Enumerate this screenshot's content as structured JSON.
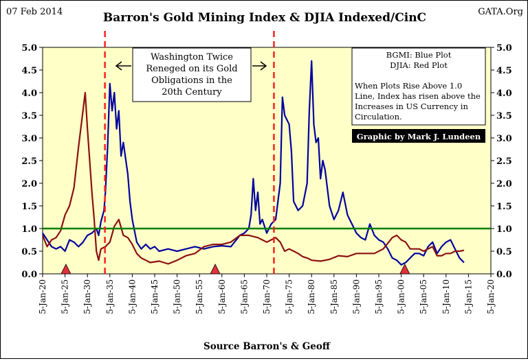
{
  "header": {
    "date": "07 Feb 2014",
    "title": "Barron's Gold Mining Index & DJIA Indexed/CinC",
    "source_tag": "GATA.Org"
  },
  "footer": {
    "source": "Source Barron's & Geoff"
  },
  "annotations": {
    "washington": [
      "Washington Twice",
      "Reneged on its Gold",
      "Obligations in the",
      "20th Century"
    ],
    "legend": [
      "BGMI: Blue Plot",
      "DJIA: Red Plot"
    ],
    "note": [
      "When Plots Rise Above 1.0",
      "Line, Index has risen above the",
      "Increases in US Currency in",
      "Circulation."
    ],
    "credit": "Graphic by Mark J. Lundeen"
  },
  "colors": {
    "plot_bg": "#ffffc8",
    "bgmi": "#00009e",
    "djia": "#8b1010",
    "reference": "#008000",
    "events": "#ff2020",
    "markers": "#e0303a"
  },
  "chart_data": {
    "type": "line",
    "title": "Barron's Gold Mining Index & DJIA Indexed/CinC",
    "xlabel": "Source Barron's & Geoff",
    "ylabel": "",
    "xlim": [
      1920,
      2020
    ],
    "ylim": [
      0,
      5
    ],
    "yticks": [
      "0.0",
      "0.5",
      "1.0",
      "1.5",
      "2.0",
      "2.5",
      "3.0",
      "3.5",
      "4.0",
      "4.5",
      "5.0"
    ],
    "xticks": [
      "5-Jan-20",
      "5-Jan-25",
      "5-Jan-30",
      "5-Jan-35",
      "5-Jan-40",
      "5-Jan-45",
      "5-Jan-50",
      "5-Jan-55",
      "5-Jan-60",
      "5-Jan-65",
      "5-Jan-70",
      "5-Jan-75",
      "5-Jan-80",
      "5-Jan-85",
      "5-Jan-90",
      "5-Jan-95",
      "5-Jan-00",
      "5-Jan-05",
      "5-Jan-10",
      "5-Jan-15",
      "5-Jan-20"
    ],
    "reference_line": 1.0,
    "event_lines": [
      1933.9,
      1971.6
    ],
    "markers": [
      1925.2,
      1958.5,
      2000.8
    ],
    "grid": false,
    "series": [
      {
        "name": "BGMI",
        "values": [
          [
            1920,
            0.9
          ],
          [
            1921,
            0.75
          ],
          [
            1922,
            0.6
          ],
          [
            1923,
            0.55
          ],
          [
            1924,
            0.6
          ],
          [
            1925,
            0.5
          ],
          [
            1926,
            0.75
          ],
          [
            1927,
            0.7
          ],
          [
            1928,
            0.6
          ],
          [
            1929,
            0.7
          ],
          [
            1930,
            0.85
          ],
          [
            1931,
            0.9
          ],
          [
            1932,
            1.0
          ],
          [
            1932.5,
            0.85
          ],
          [
            1933,
            1.15
          ],
          [
            1933.7,
            1.4
          ],
          [
            1934,
            1.8
          ],
          [
            1934.5,
            2.8
          ],
          [
            1935,
            4.2
          ],
          [
            1935.5,
            3.6
          ],
          [
            1936,
            4.0
          ],
          [
            1936.5,
            3.2
          ],
          [
            1937,
            3.6
          ],
          [
            1937.5,
            2.6
          ],
          [
            1938,
            2.9
          ],
          [
            1939,
            2.2
          ],
          [
            1939.5,
            1.6
          ],
          [
            1940,
            1.2
          ],
          [
            1941,
            0.7
          ],
          [
            1942,
            0.55
          ],
          [
            1943,
            0.65
          ],
          [
            1944,
            0.55
          ],
          [
            1945,
            0.6
          ],
          [
            1946,
            0.5
          ],
          [
            1948,
            0.55
          ],
          [
            1950,
            0.5
          ],
          [
            1952,
            0.55
          ],
          [
            1954,
            0.6
          ],
          [
            1956,
            0.55
          ],
          [
            1958,
            0.6
          ],
          [
            1960,
            0.62
          ],
          [
            1962,
            0.6
          ],
          [
            1964,
            0.85
          ],
          [
            1965,
            0.9
          ],
          [
            1966,
            1.0
          ],
          [
            1966.5,
            1.3
          ],
          [
            1967,
            2.1
          ],
          [
            1967.5,
            1.4
          ],
          [
            1968,
            1.8
          ],
          [
            1968.5,
            1.1
          ],
          [
            1969,
            1.2
          ],
          [
            1970,
            0.9
          ],
          [
            1971,
            1.1
          ],
          [
            1972,
            1.2
          ],
          [
            1973,
            2.0
          ],
          [
            1973.5,
            3.9
          ],
          [
            1974,
            3.5
          ],
          [
            1975,
            3.3
          ],
          [
            1975.5,
            2.7
          ],
          [
            1976,
            1.6
          ],
          [
            1977,
            1.4
          ],
          [
            1978,
            1.5
          ],
          [
            1979,
            2.0
          ],
          [
            1979.5,
            3.6
          ],
          [
            1980,
            4.7
          ],
          [
            1980.5,
            3.3
          ],
          [
            1981,
            2.9
          ],
          [
            1981.5,
            3.0
          ],
          [
            1982,
            2.1
          ],
          [
            1982.5,
            2.5
          ],
          [
            1983,
            2.3
          ],
          [
            1984,
            1.5
          ],
          [
            1985,
            1.2
          ],
          [
            1986,
            1.4
          ],
          [
            1987,
            1.8
          ],
          [
            1988,
            1.3
          ],
          [
            1989,
            1.1
          ],
          [
            1990,
            0.9
          ],
          [
            1991,
            0.8
          ],
          [
            1992,
            0.75
          ],
          [
            1993,
            1.1
          ],
          [
            1994,
            0.85
          ],
          [
            1995,
            0.75
          ],
          [
            1996,
            0.7
          ],
          [
            1997,
            0.55
          ],
          [
            1998,
            0.35
          ],
          [
            1999,
            0.3
          ],
          [
            2000,
            0.2
          ],
          [
            2001,
            0.25
          ],
          [
            2002,
            0.35
          ],
          [
            2003,
            0.45
          ],
          [
            2004,
            0.45
          ],
          [
            2005,
            0.4
          ],
          [
            2006,
            0.6
          ],
          [
            2007,
            0.7
          ],
          [
            2008,
            0.45
          ],
          [
            2009,
            0.6
          ],
          [
            2010,
            0.7
          ],
          [
            2011,
            0.75
          ],
          [
            2012,
            0.55
          ],
          [
            2013,
            0.35
          ],
          [
            2014,
            0.25
          ]
        ]
      },
      {
        "name": "DJIA",
        "values": [
          [
            1920,
            0.85
          ],
          [
            1921,
            0.6
          ],
          [
            1922,
            0.75
          ],
          [
            1923,
            0.8
          ],
          [
            1924,
            0.95
          ],
          [
            1925,
            1.3
          ],
          [
            1926,
            1.5
          ],
          [
            1927,
            1.9
          ],
          [
            1928,
            2.8
          ],
          [
            1929,
            3.6
          ],
          [
            1929.5,
            4.0
          ],
          [
            1930,
            3.2
          ],
          [
            1931,
            1.8
          ],
          [
            1931.5,
            1.2
          ],
          [
            1932,
            0.5
          ],
          [
            1932.5,
            0.3
          ],
          [
            1933,
            0.55
          ],
          [
            1934,
            0.6
          ],
          [
            1935,
            0.7
          ],
          [
            1936,
            1.05
          ],
          [
            1937,
            1.2
          ],
          [
            1938,
            0.85
          ],
          [
            1939,
            0.8
          ],
          [
            1940,
            0.65
          ],
          [
            1941,
            0.45
          ],
          [
            1942,
            0.35
          ],
          [
            1943,
            0.3
          ],
          [
            1944,
            0.25
          ],
          [
            1946,
            0.28
          ],
          [
            1948,
            0.22
          ],
          [
            1950,
            0.3
          ],
          [
            1952,
            0.4
          ],
          [
            1954,
            0.45
          ],
          [
            1956,
            0.6
          ],
          [
            1958,
            0.65
          ],
          [
            1960,
            0.65
          ],
          [
            1962,
            0.7
          ],
          [
            1964,
            0.85
          ],
          [
            1966,
            0.85
          ],
          [
            1968,
            0.8
          ],
          [
            1970,
            0.7
          ],
          [
            1971,
            0.75
          ],
          [
            1972,
            0.8
          ],
          [
            1973,
            0.7
          ],
          [
            1974,
            0.5
          ],
          [
            1975,
            0.55
          ],
          [
            1976,
            0.5
          ],
          [
            1977,
            0.45
          ],
          [
            1978,
            0.38
          ],
          [
            1979,
            0.35
          ],
          [
            1980,
            0.3
          ],
          [
            1982,
            0.28
          ],
          [
            1984,
            0.32
          ],
          [
            1986,
            0.4
          ],
          [
            1988,
            0.38
          ],
          [
            1990,
            0.45
          ],
          [
            1992,
            0.45
          ],
          [
            1994,
            0.45
          ],
          [
            1996,
            0.55
          ],
          [
            1998,
            0.8
          ],
          [
            1999,
            0.85
          ],
          [
            2000,
            0.75
          ],
          [
            2001,
            0.7
          ],
          [
            2002,
            0.55
          ],
          [
            2003,
            0.55
          ],
          [
            2004,
            0.55
          ],
          [
            2005,
            0.5
          ],
          [
            2006,
            0.55
          ],
          [
            2007,
            0.6
          ],
          [
            2008,
            0.4
          ],
          [
            2009,
            0.4
          ],
          [
            2010,
            0.45
          ],
          [
            2011,
            0.45
          ],
          [
            2012,
            0.5
          ],
          [
            2013,
            0.5
          ],
          [
            2014,
            0.52
          ]
        ]
      }
    ]
  }
}
